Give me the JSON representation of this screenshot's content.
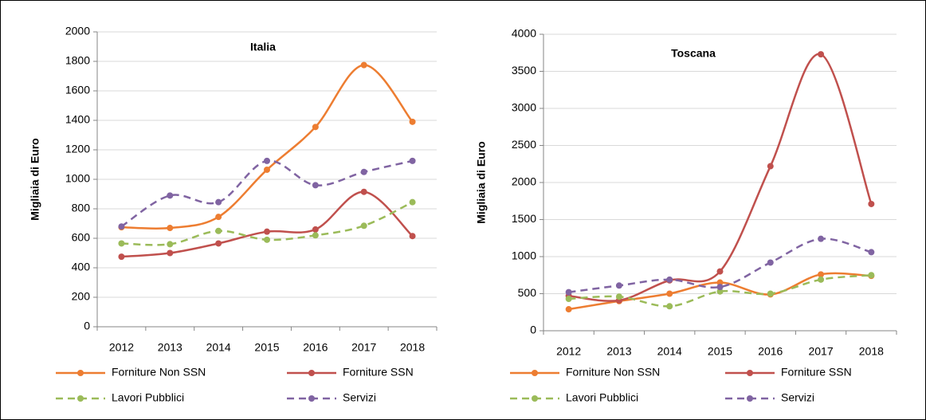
{
  "chart_data": [
    {
      "type": "line",
      "title": "Italia",
      "y_label": "Migliaia di Euro",
      "categories": [
        "2012",
        "2013",
        "2014",
        "2015",
        "2016",
        "2017",
        "2018"
      ],
      "ylim": [
        0,
        2000
      ],
      "yticks": [
        0,
        200,
        400,
        600,
        800,
        1000,
        1200,
        1400,
        1600,
        1800,
        2000
      ],
      "grid": true,
      "series": [
        {
          "name": "Forniture Non SSN",
          "color": "#ed7d31",
          "dashed": false,
          "values": [
            675,
            670,
            745,
            1065,
            1355,
            1775,
            1390
          ]
        },
        {
          "name": "Forniture SSN",
          "color": "#c0504d",
          "dashed": false,
          "values": [
            475,
            500,
            565,
            645,
            660,
            915,
            615
          ]
        },
        {
          "name": "Lavori Pubblici",
          "color": "#9bbb59",
          "dashed": true,
          "values": [
            565,
            560,
            650,
            590,
            620,
            685,
            845
          ]
        },
        {
          "name": "Servizi",
          "color": "#8064a2",
          "dashed": true,
          "values": [
            680,
            890,
            845,
            1125,
            960,
            1050,
            1125
          ]
        }
      ]
    },
    {
      "type": "line",
      "title": "Toscana",
      "y_label": "Migliaia di Euro",
      "categories": [
        "2012",
        "2013",
        "2014",
        "2015",
        "2016",
        "2017",
        "2018"
      ],
      "ylim": [
        0,
        4000
      ],
      "yticks": [
        0,
        500,
        1000,
        1500,
        2000,
        2500,
        3000,
        3500,
        4000
      ],
      "grid": true,
      "series": [
        {
          "name": "Forniture Non SSN",
          "color": "#ed7d31",
          "dashed": false,
          "values": [
            290,
            400,
            500,
            650,
            490,
            760,
            740
          ]
        },
        {
          "name": "Forniture SSN",
          "color": "#c0504d",
          "dashed": false,
          "values": [
            470,
            410,
            680,
            800,
            2220,
            3730,
            1710
          ]
        },
        {
          "name": "Lavori Pubblici",
          "color": "#9bbb59",
          "dashed": true,
          "values": [
            430,
            460,
            330,
            530,
            500,
            690,
            750
          ]
        },
        {
          "name": "Servizi",
          "color": "#8064a2",
          "dashed": true,
          "values": [
            520,
            610,
            690,
            590,
            920,
            1240,
            1060
          ]
        }
      ]
    }
  ]
}
